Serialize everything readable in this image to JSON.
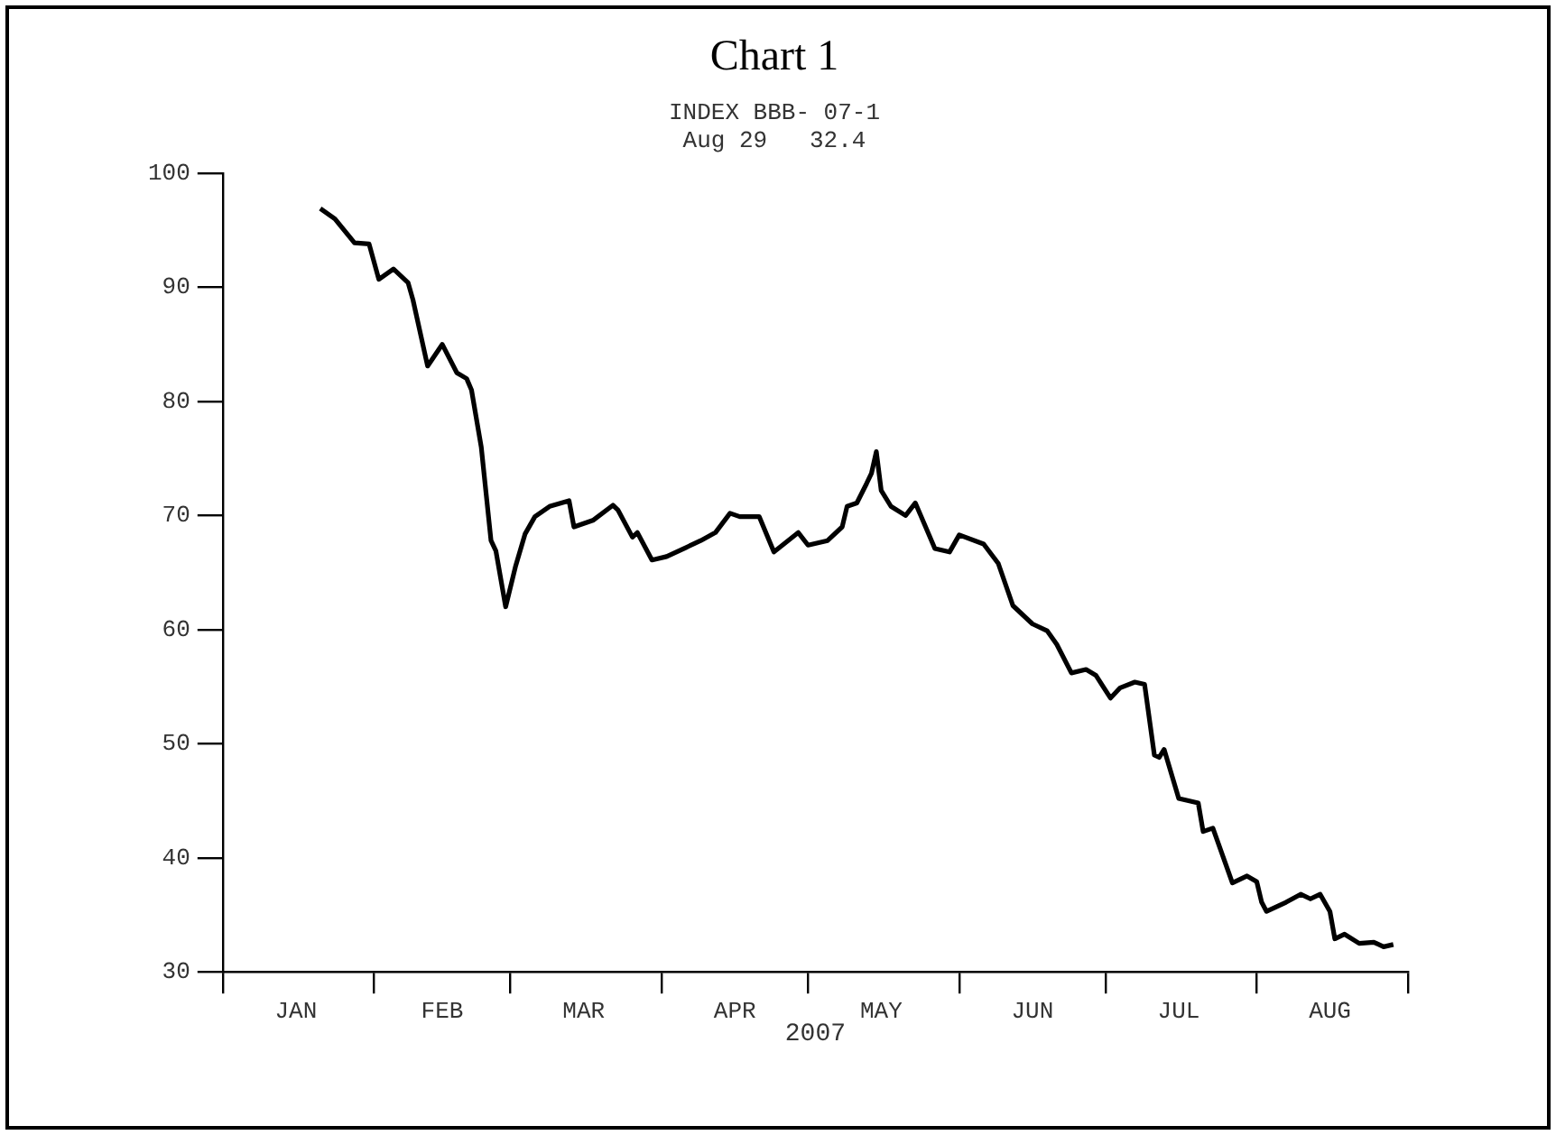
{
  "chart_data": {
    "type": "line",
    "title": "Chart 1",
    "subtitle": "INDEX BBB- 07-1",
    "annotations": [
      "Aug 29   32.4"
    ],
    "xlabel": "2007",
    "x": [
      "2007-01-21",
      "2007-01-24",
      "2007-01-28",
      "2007-01-31",
      "2007-02-02",
      "2007-02-05",
      "2007-02-08",
      "2007-02-09",
      "2007-02-12",
      "2007-02-15",
      "2007-02-18",
      "2007-02-20",
      "2007-02-21",
      "2007-02-23",
      "2007-02-25",
      "2007-02-26",
      "2007-02-28",
      "2007-03-02",
      "2007-03-04",
      "2007-03-06",
      "2007-03-09",
      "2007-03-13",
      "2007-03-14",
      "2007-03-18",
      "2007-03-22",
      "2007-03-23",
      "2007-03-26",
      "2007-03-27",
      "2007-03-30",
      "2007-04-02",
      "2007-04-06",
      "2007-04-09",
      "2007-04-12",
      "2007-04-15",
      "2007-04-17",
      "2007-04-21",
      "2007-04-24",
      "2007-04-29",
      "2007-05-01",
      "2007-05-05",
      "2007-05-08",
      "2007-05-09",
      "2007-05-11",
      "2007-05-13",
      "2007-05-14",
      "2007-05-15",
      "2007-05-16",
      "2007-05-18",
      "2007-05-21",
      "2007-05-23",
      "2007-05-27",
      "2007-05-30",
      "2007-06-01",
      "2007-06-06",
      "2007-06-09",
      "2007-06-12",
      "2007-06-16",
      "2007-06-19",
      "2007-06-21",
      "2007-06-24",
      "2007-06-27",
      "2007-06-29",
      "2007-07-02",
      "2007-07-04",
      "2007-07-07",
      "2007-07-09",
      "2007-07-11",
      "2007-07-12",
      "2007-07-13",
      "2007-07-16",
      "2007-07-20",
      "2007-07-21",
      "2007-07-23",
      "2007-07-27",
      "2007-07-30",
      "2007-08-01",
      "2007-08-02",
      "2007-08-03",
      "2007-08-07",
      "2007-08-10",
      "2007-08-12",
      "2007-08-14",
      "2007-08-16",
      "2007-08-17",
      "2007-08-19",
      "2007-08-22",
      "2007-08-25",
      "2007-08-27",
      "2007-08-29"
    ],
    "series": [
      {
        "color": "#000000",
        "values": [
          96.9,
          96.0,
          93.9,
          93.8,
          90.7,
          91.6,
          90.4,
          88.9,
          83.1,
          85.0,
          82.5,
          82.0,
          81.0,
          76.0,
          67.8,
          66.9,
          62.0,
          65.5,
          68.4,
          69.9,
          70.8,
          71.3,
          69.0,
          69.6,
          70.9,
          70.5,
          68.1,
          68.5,
          66.1,
          66.4,
          67.2,
          67.8,
          68.5,
          70.2,
          69.9,
          69.9,
          66.8,
          68.5,
          67.4,
          67.8,
          69.0,
          70.8,
          71.1,
          72.8,
          73.7,
          75.6,
          72.2,
          70.8,
          70.0,
          71.1,
          67.1,
          66.8,
          68.3,
          67.5,
          65.8,
          62.1,
          60.5,
          59.9,
          58.7,
          56.2,
          56.5,
          56.0,
          54.0,
          54.9,
          55.4,
          55.2,
          49.0,
          48.8,
          49.5,
          45.2,
          44.8,
          42.3,
          42.6,
          37.8,
          38.4,
          37.9,
          36.1,
          35.3,
          36.1,
          36.8,
          36.4,
          36.8,
          35.3,
          32.9,
          33.3,
          32.5,
          32.6,
          32.2,
          32.4
        ]
      }
    ],
    "xlim": [
      "2007-01-01",
      "2007-09-01"
    ],
    "xticks": [
      {
        "value": "2007-01-01",
        "label": null
      },
      {
        "value": "2007-01-16",
        "label": "JAN"
      },
      {
        "value": "2007-02-01",
        "label": null
      },
      {
        "value": "2007-02-15",
        "label": "FEB"
      },
      {
        "value": "2007-03-01",
        "label": null
      },
      {
        "value": "2007-03-16",
        "label": "MAR"
      },
      {
        "value": "2007-04-01",
        "label": null
      },
      {
        "value": "2007-04-16",
        "label": "APR"
      },
      {
        "value": "2007-05-01",
        "label": null
      },
      {
        "value": "2007-05-16",
        "label": "MAY"
      },
      {
        "value": "2007-06-01",
        "label": null
      },
      {
        "value": "2007-06-16",
        "label": "JUN"
      },
      {
        "value": "2007-07-01",
        "label": null
      },
      {
        "value": "2007-07-16",
        "label": "JUL"
      },
      {
        "value": "2007-08-01",
        "label": null
      },
      {
        "value": "2007-08-16",
        "label": "AUG"
      },
      {
        "value": "2007-09-01",
        "label": null
      }
    ],
    "ylim": [
      30,
      100
    ],
    "yticks": [
      30,
      40,
      50,
      60,
      70,
      80,
      90,
      100
    ]
  }
}
